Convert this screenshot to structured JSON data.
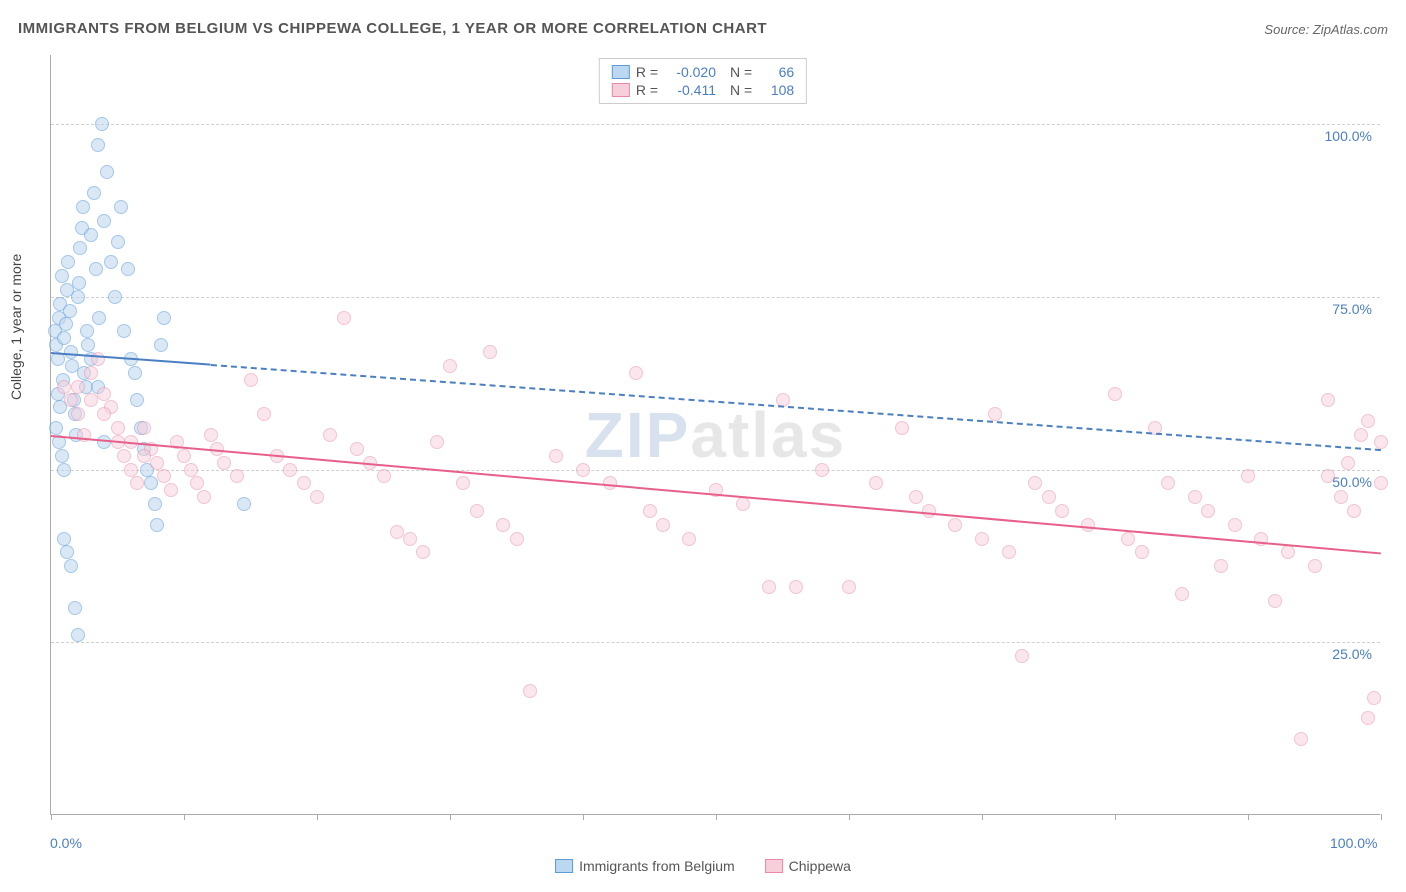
{
  "title": "IMMIGRANTS FROM BELGIUM VS CHIPPEWA COLLEGE, 1 YEAR OR MORE CORRELATION CHART",
  "source_label": "Source:",
  "source_name": "ZipAtlas.com",
  "y_axis_label": "College, 1 year or more",
  "watermark_z": "ZIP",
  "watermark_rest": "atlas",
  "chart": {
    "type": "scatter",
    "background_color": "#ffffff",
    "grid_color": "#d0d0d0",
    "axis_color": "#aaaaaa",
    "xlim": [
      0,
      100
    ],
    "ylim": [
      0,
      110
    ],
    "y_ticks": [
      {
        "value": 25,
        "label": "25.0%"
      },
      {
        "value": 50,
        "label": "50.0%"
      },
      {
        "value": 75,
        "label": "75.0%"
      },
      {
        "value": 100,
        "label": "100.0%"
      }
    ],
    "x_ticks": [
      0,
      10,
      20,
      30,
      40,
      50,
      60,
      70,
      80,
      90,
      100
    ],
    "x_labels": [
      {
        "value": 0,
        "label": "0.0%",
        "color": "#4a7fc4"
      },
      {
        "value": 100,
        "label": "100.0%",
        "color": "#4a7fc4"
      }
    ],
    "y_tick_color": "#4a7fc4",
    "marker_radius": 7,
    "marker_stroke_width": 1.2,
    "series": [
      {
        "name": "Immigrants from Belgium",
        "fill": "#bcd7f0",
        "stroke": "#5a9bd8",
        "fill_opacity": 0.55,
        "R": "-0.020",
        "N": "66",
        "trend": {
          "x1": 0,
          "y1": 67,
          "x2": 100,
          "y2": 53,
          "solid_until_x": 12,
          "color": "#4a7fc4",
          "width": 2.5,
          "dash": "6,6"
        },
        "points": [
          [
            0.3,
            70
          ],
          [
            0.4,
            68
          ],
          [
            0.5,
            66
          ],
          [
            0.6,
            72
          ],
          [
            0.7,
            74
          ],
          [
            0.8,
            78
          ],
          [
            0.9,
            63
          ],
          [
            1.0,
            69
          ],
          [
            1.1,
            71
          ],
          [
            1.2,
            76
          ],
          [
            1.3,
            80
          ],
          [
            1.4,
            73
          ],
          [
            1.5,
            67
          ],
          [
            1.6,
            65
          ],
          [
            1.7,
            60
          ],
          [
            1.8,
            58
          ],
          [
            1.9,
            55
          ],
          [
            2.0,
            75
          ],
          [
            2.1,
            77
          ],
          [
            2.2,
            82
          ],
          [
            2.3,
            85
          ],
          [
            2.4,
            88
          ],
          [
            2.5,
            64
          ],
          [
            2.6,
            62
          ],
          [
            2.7,
            70
          ],
          [
            2.8,
            68
          ],
          [
            3.0,
            84
          ],
          [
            3.2,
            90
          ],
          [
            3.4,
            79
          ],
          [
            3.5,
            97
          ],
          [
            3.6,
            72
          ],
          [
            3.8,
            100
          ],
          [
            4.0,
            86
          ],
          [
            4.2,
            93
          ],
          [
            4.5,
            80
          ],
          [
            4.8,
            75
          ],
          [
            5.0,
            83
          ],
          [
            5.3,
            88
          ],
          [
            5.5,
            70
          ],
          [
            5.8,
            79
          ],
          [
            6.0,
            66
          ],
          [
            6.3,
            64
          ],
          [
            6.5,
            60
          ],
          [
            6.8,
            56
          ],
          [
            7.0,
            53
          ],
          [
            7.2,
            50
          ],
          [
            7.5,
            48
          ],
          [
            7.8,
            45
          ],
          [
            8.0,
            42
          ],
          [
            8.3,
            68
          ],
          [
            8.5,
            72
          ],
          [
            1.0,
            40
          ],
          [
            1.2,
            38
          ],
          [
            1.5,
            36
          ],
          [
            1.8,
            30
          ],
          [
            2.0,
            26
          ],
          [
            0.4,
            56
          ],
          [
            0.6,
            54
          ],
          [
            0.8,
            52
          ],
          [
            1.0,
            50
          ],
          [
            0.5,
            61
          ],
          [
            0.7,
            59
          ],
          [
            3.0,
            66
          ],
          [
            3.5,
            62
          ],
          [
            4.0,
            54
          ],
          [
            14.5,
            45
          ]
        ]
      },
      {
        "name": "Chippewa",
        "fill": "#f7cfda",
        "stroke": "#e68aa6",
        "fill_opacity": 0.5,
        "R": "-0.411",
        "N": "108",
        "trend": {
          "x1": 0,
          "y1": 55,
          "x2": 100,
          "y2": 38,
          "solid_until_x": 100,
          "color": "#e85f8a",
          "width": 2.5,
          "dash": ""
        },
        "points": [
          [
            1,
            62
          ],
          [
            1.5,
            60
          ],
          [
            2,
            58
          ],
          [
            2.5,
            55
          ],
          [
            3,
            64
          ],
          [
            3.5,
            66
          ],
          [
            4,
            61
          ],
          [
            4.5,
            59
          ],
          [
            5,
            54
          ],
          [
            5.5,
            52
          ],
          [
            6,
            50
          ],
          [
            6.5,
            48
          ],
          [
            7,
            56
          ],
          [
            7.5,
            53
          ],
          [
            8,
            51
          ],
          [
            8.5,
            49
          ],
          [
            9,
            47
          ],
          [
            9.5,
            54
          ],
          [
            10,
            52
          ],
          [
            10.5,
            50
          ],
          [
            11,
            48
          ],
          [
            11.5,
            46
          ],
          [
            12,
            55
          ],
          [
            12.5,
            53
          ],
          [
            13,
            51
          ],
          [
            14,
            49
          ],
          [
            15,
            63
          ],
          [
            16,
            58
          ],
          [
            17,
            52
          ],
          [
            18,
            50
          ],
          [
            19,
            48
          ],
          [
            20,
            46
          ],
          [
            21,
            55
          ],
          [
            22,
            72
          ],
          [
            23,
            53
          ],
          [
            24,
            51
          ],
          [
            25,
            49
          ],
          [
            26,
            41
          ],
          [
            27,
            40
          ],
          [
            28,
            38
          ],
          [
            29,
            54
          ],
          [
            30,
            65
          ],
          [
            31,
            48
          ],
          [
            32,
            44
          ],
          [
            33,
            67
          ],
          [
            34,
            42
          ],
          [
            35,
            40
          ],
          [
            36,
            18
          ],
          [
            38,
            52
          ],
          [
            40,
            50
          ],
          [
            42,
            48
          ],
          [
            44,
            64
          ],
          [
            45,
            44
          ],
          [
            46,
            42
          ],
          [
            48,
            40
          ],
          [
            50,
            47
          ],
          [
            52,
            45
          ],
          [
            54,
            33
          ],
          [
            55,
            60
          ],
          [
            56,
            33
          ],
          [
            58,
            50
          ],
          [
            60,
            33
          ],
          [
            62,
            48
          ],
          [
            64,
            56
          ],
          [
            65,
            46
          ],
          [
            66,
            44
          ],
          [
            68,
            42
          ],
          [
            70,
            40
          ],
          [
            71,
            58
          ],
          [
            72,
            38
          ],
          [
            73,
            23
          ],
          [
            74,
            48
          ],
          [
            75,
            46
          ],
          [
            76,
            44
          ],
          [
            78,
            42
          ],
          [
            80,
            61
          ],
          [
            81,
            40
          ],
          [
            82,
            38
          ],
          [
            83,
            56
          ],
          [
            84,
            48
          ],
          [
            85,
            32
          ],
          [
            86,
            46
          ],
          [
            87,
            44
          ],
          [
            88,
            36
          ],
          [
            89,
            42
          ],
          [
            90,
            49
          ],
          [
            91,
            40
          ],
          [
            92,
            31
          ],
          [
            93,
            38
          ],
          [
            94,
            11
          ],
          [
            95,
            36
          ],
          [
            96,
            49
          ],
          [
            96,
            60
          ],
          [
            97,
            46
          ],
          [
            97.5,
            51
          ],
          [
            98,
            44
          ],
          [
            98.5,
            55
          ],
          [
            99,
            57
          ],
          [
            99,
            14
          ],
          [
            99.5,
            17
          ],
          [
            100,
            48
          ],
          [
            100,
            54
          ],
          [
            2,
            62
          ],
          [
            3,
            60
          ],
          [
            4,
            58
          ],
          [
            5,
            56
          ],
          [
            6,
            54
          ],
          [
            7,
            52
          ]
        ]
      }
    ]
  },
  "legend_top_layout": {
    "R_label": "R =",
    "N_label": "N =",
    "R_width": 52,
    "N_width": 36
  },
  "legend_bottom": [
    {
      "label": "Immigrants from Belgium",
      "fill": "#bcd7f0",
      "stroke": "#5a9bd8"
    },
    {
      "label": "Chippewa",
      "fill": "#f7cfda",
      "stroke": "#e68aa6"
    }
  ]
}
